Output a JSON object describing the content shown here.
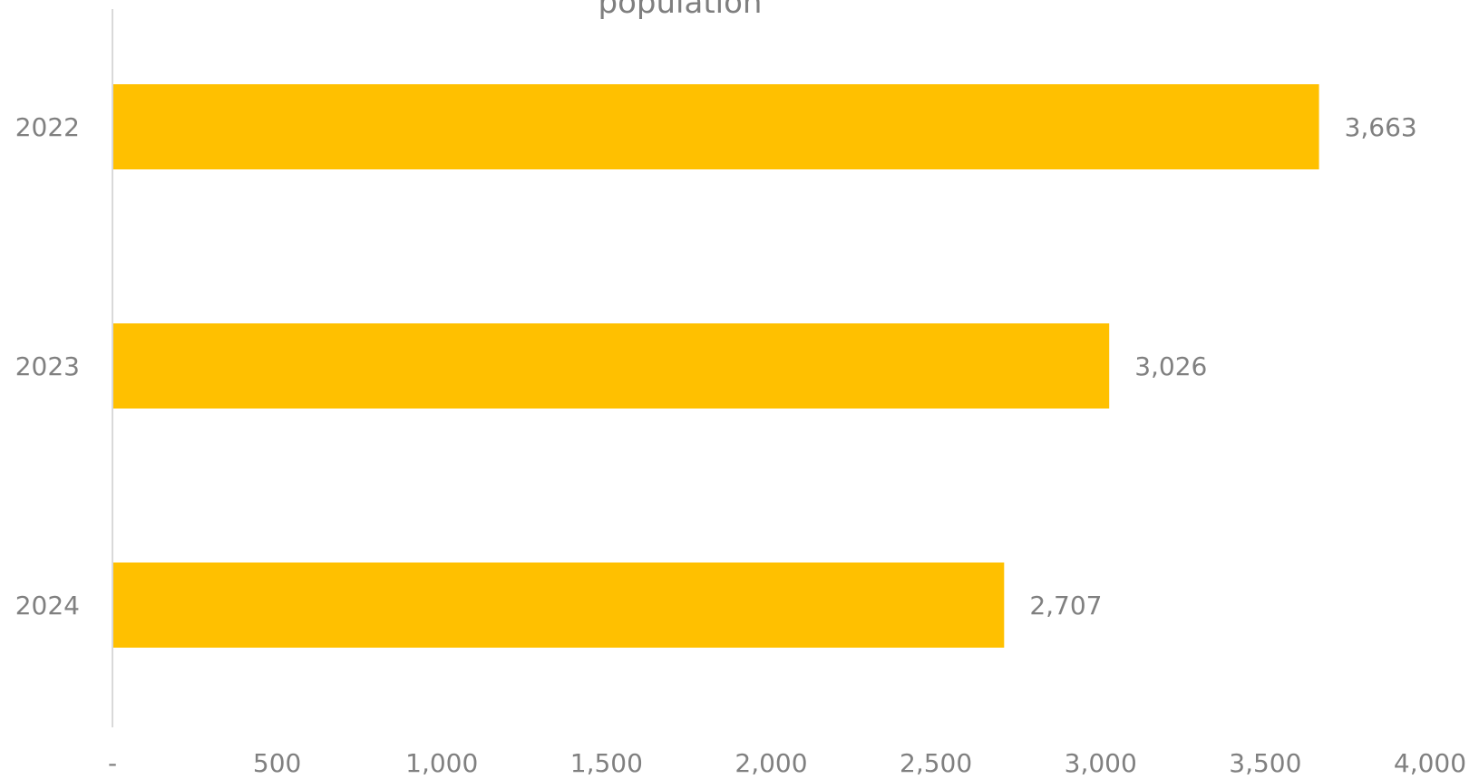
{
  "chart_data": {
    "type": "bar",
    "orientation": "horizontal",
    "title": "population",
    "categories": [
      "2022",
      "2023",
      "2024"
    ],
    "values": [
      3663,
      3026,
      2707
    ],
    "data_labels": [
      "3,663",
      "3,026",
      "2,707"
    ],
    "xlim": [
      0,
      4000
    ],
    "x_ticks": [
      0,
      500,
      1000,
      1500,
      2000,
      2500,
      3000,
      3500,
      4000
    ],
    "x_tick_labels": [
      "-",
      "500",
      "1,000",
      "1,500",
      "2,000",
      "2,500",
      "3,000",
      "3,500",
      "4,000"
    ],
    "grid": false,
    "legend": "none",
    "colors": {
      "bar": "#FFC000",
      "axis": "#D9D9D9",
      "text": "#808080"
    }
  }
}
